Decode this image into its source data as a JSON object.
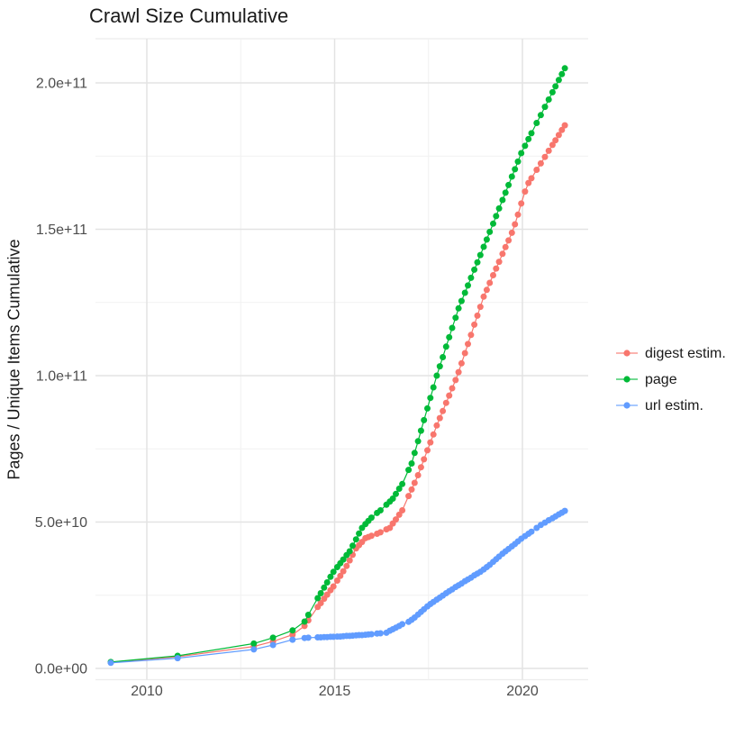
{
  "title": "Crawl Size Cumulative",
  "y_axis": {
    "label": "Pages / Unique Items Cumulative",
    "ticks": [
      {
        "label": "0.0e+00",
        "value": 0
      },
      {
        "label": "5.0e+10",
        "value": 50
      },
      {
        "label": "1.0e+11",
        "value": 100
      },
      {
        "label": "1.5e+11",
        "value": 150
      },
      {
        "label": "2.0e+11",
        "value": 200
      }
    ],
    "minor_values": [
      25,
      75,
      125,
      175
    ]
  },
  "x_axis": {
    "ticks": [
      {
        "label": "2010",
        "value": 2010
      },
      {
        "label": "2015",
        "value": 2015
      },
      {
        "label": "2020",
        "value": 2020
      }
    ],
    "minor_values": [
      2012.5,
      2017.5
    ]
  },
  "legend": {
    "position": "right",
    "items": [
      {
        "label": "digest estim.",
        "color": "#F8766D"
      },
      {
        "label": "page",
        "color": "#00BA38"
      },
      {
        "label": "url estim.",
        "color": "#619CFF"
      }
    ]
  },
  "chart_data": {
    "type": "line",
    "marker": "circle",
    "title": "Crawl Size Cumulative",
    "xlabel": "",
    "ylabel": "Pages / Unique Items Cumulative",
    "value_unit": "1e9 pages (billions)",
    "xlim": [
      2008.4,
      2021.7
    ],
    "ylim": [
      0,
      215
    ],
    "grid": true,
    "legend_position": "right",
    "x": [
      2009.04,
      2010.82,
      2012.85,
      2013.36,
      2013.88,
      2014.2,
      2014.3,
      2014.55,
      2014.63,
      2014.72,
      2014.8,
      2014.89,
      2014.97,
      2015.07,
      2015.15,
      2015.23,
      2015.32,
      2015.4,
      2015.48,
      2015.57,
      2015.65,
      2015.73,
      2015.82,
      2015.9,
      2015.98,
      2016.13,
      2016.22,
      2016.38,
      2016.47,
      2016.55,
      2016.63,
      2016.72,
      2016.8,
      2016.97,
      2017.05,
      2017.13,
      2017.22,
      2017.3,
      2017.38,
      2017.47,
      2017.55,
      2017.63,
      2017.72,
      2017.8,
      2017.88,
      2017.97,
      2018.05,
      2018.13,
      2018.22,
      2018.3,
      2018.38,
      2018.47,
      2018.55,
      2018.63,
      2018.72,
      2018.8,
      2018.88,
      2018.97,
      2019.05,
      2019.13,
      2019.22,
      2019.3,
      2019.38,
      2019.47,
      2019.55,
      2019.63,
      2019.72,
      2019.8,
      2019.88,
      2019.97,
      2020.07,
      2020.16,
      2020.24,
      2020.38,
      2020.49,
      2020.6,
      2020.7,
      2020.8,
      2020.88,
      2020.97,
      2021.05,
      2021.13
    ],
    "series": [
      {
        "name": "digest estim.",
        "color": "#F8766D",
        "values": [
          2.1,
          4.0,
          7.5,
          9.2,
          11.5,
          14.5,
          16.4,
          21.0,
          22.3,
          23.8,
          25.2,
          26.7,
          28.0,
          30.0,
          31.6,
          33.2,
          35.0,
          36.9,
          38.8,
          41.0,
          42.1,
          43.2,
          44.5,
          44.9,
          45.3,
          46.0,
          46.5,
          47.5,
          48.0,
          49.5,
          50.9,
          52.5,
          54.0,
          58.9,
          61.1,
          63.4,
          66.0,
          68.7,
          71.4,
          74.5,
          77.2,
          79.9,
          83.0,
          85.5,
          87.9,
          90.7,
          93.2,
          95.7,
          98.5,
          101.2,
          104.2,
          107.7,
          110.8,
          113.9,
          117.4,
          120.5,
          123.5,
          127.0,
          129.3,
          131.7,
          134.3,
          136.6,
          138.9,
          141.6,
          143.9,
          146.2,
          148.8,
          151.7,
          155.0,
          158.8,
          162.9,
          165.8,
          167.4,
          170.3,
          172.5,
          174.7,
          176.8,
          178.8,
          180.4,
          182.2,
          183.9,
          185.5
        ]
      },
      {
        "name": "page",
        "color": "#00BA38",
        "values": [
          2.2,
          4.3,
          8.5,
          10.5,
          13.0,
          16.0,
          18.3,
          24.0,
          25.7,
          27.6,
          29.4,
          31.3,
          33.0,
          34.6,
          35.9,
          37.2,
          38.7,
          40.0,
          41.9,
          44.1,
          46.1,
          48.0,
          49.3,
          50.4,
          51.5,
          53.1,
          54.0,
          55.9,
          57.0,
          58.0,
          59.6,
          61.4,
          63.0,
          67.8,
          70.0,
          73.6,
          77.6,
          81.2,
          84.8,
          88.8,
          92.4,
          96.0,
          100.0,
          103.2,
          106.3,
          109.9,
          113.1,
          116.3,
          119.8,
          123.0,
          125.5,
          128.3,
          130.8,
          133.4,
          136.2,
          138.7,
          141.2,
          144.0,
          146.5,
          149.1,
          151.9,
          154.5,
          157.1,
          160.0,
          162.5,
          165.1,
          168.0,
          170.5,
          173.1,
          176.0,
          178.5,
          180.8,
          182.8,
          186.3,
          189.0,
          191.8,
          194.3,
          196.8,
          198.8,
          201.0,
          203.0,
          205.0
        ]
      },
      {
        "name": "url estim.",
        "color": "#619CFF",
        "values": [
          1.9,
          3.5,
          6.5,
          8.0,
          9.8,
          10.4,
          10.5,
          10.6,
          10.6,
          10.7,
          10.7,
          10.8,
          10.8,
          10.9,
          10.9,
          11.0,
          11.1,
          11.1,
          11.2,
          11.3,
          11.4,
          11.4,
          11.5,
          11.6,
          11.7,
          11.9,
          12.0,
          12.2,
          12.9,
          13.4,
          13.9,
          14.5,
          15.1,
          15.9,
          16.6,
          17.4,
          18.4,
          19.3,
          20.2,
          21.2,
          22.0,
          22.7,
          23.5,
          24.2,
          24.9,
          25.7,
          26.4,
          27.0,
          27.8,
          28.4,
          29.0,
          29.8,
          30.4,
          31.0,
          31.8,
          32.4,
          33.0,
          33.8,
          34.6,
          35.4,
          36.4,
          37.3,
          38.2,
          39.2,
          40.0,
          40.8,
          41.7,
          42.5,
          43.4,
          44.3,
          45.2,
          46.0,
          46.7,
          48.0,
          49.0,
          49.8,
          50.6,
          51.3,
          51.9,
          52.6,
          53.2,
          53.8
        ]
      }
    ]
  }
}
